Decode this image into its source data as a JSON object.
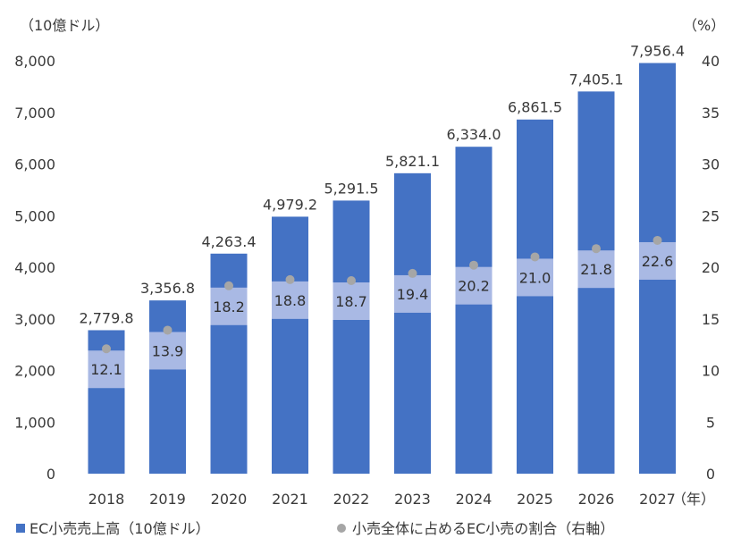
{
  "chart_data": {
    "type": "bar",
    "categories": [
      "2018",
      "2019",
      "2020",
      "2021",
      "2022",
      "2023",
      "2024",
      "2025",
      "2026",
      "2027"
    ],
    "series": [
      {
        "name": "EC小売売上高（10億ドル）",
        "axis": "left",
        "type": "bar",
        "values": [
          2779.8,
          3356.8,
          4263.4,
          4979.2,
          5291.5,
          5821.1,
          6334.0,
          6861.5,
          7405.1,
          7956.4
        ],
        "value_labels": [
          "2,779.8",
          "3,356.8",
          "4,263.4",
          "4,979.2",
          "5,291.5",
          "5,821.1",
          "6,334.0",
          "6,861.5",
          "7,405.1",
          "7,956.4"
        ]
      },
      {
        "name": "小売全体に占めるEC小売の割合（右軸）",
        "axis": "right",
        "type": "scatter",
        "values": [
          12.1,
          13.9,
          18.2,
          18.8,
          18.7,
          19.4,
          20.2,
          21.0,
          21.8,
          22.6
        ],
        "value_labels": [
          "12.1",
          "13.9",
          "18.2",
          "18.8",
          "18.7",
          "19.4",
          "20.2",
          "21.0",
          "21.8",
          "22.6"
        ]
      }
    ],
    "y_left": {
      "unit": "（10億ドル）",
      "ylim": [
        0,
        8000
      ],
      "ticks": [
        "0",
        "1,000",
        "2,000",
        "3,000",
        "4,000",
        "5,000",
        "6,000",
        "7,000",
        "8,000"
      ]
    },
    "y_right": {
      "unit": "（%）",
      "ylim": [
        0,
        40
      ],
      "ticks": [
        "0",
        "5",
        "10",
        "15",
        "20",
        "25",
        "30",
        "35",
        "40"
      ]
    },
    "x_unit": "（年）",
    "legend_position": "bottom",
    "grid": false
  },
  "colors": {
    "bar": "#4472c4",
    "label_band": "#a9b9e4",
    "marker": "#a6a6a6",
    "text": "#3a3a3a"
  }
}
